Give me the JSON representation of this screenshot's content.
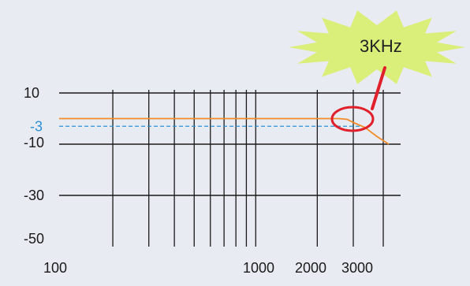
{
  "chart_data": {
    "type": "line",
    "title": "",
    "xlabel": "",
    "ylabel": "",
    "x_scale": "log",
    "xlim": [
      100,
      3600
    ],
    "ylim": [
      -50,
      10
    ],
    "x_tick_labels": [
      "100",
      "1000",
      "2000",
      "3000"
    ],
    "y_tick_labels": [
      "10",
      "-10",
      "-30",
      "-50"
    ],
    "reference_line": {
      "label": "-3",
      "y": -3,
      "color": "#2a92d6"
    },
    "series": [
      {
        "color": "#f08c2a",
        "x": [
          100,
          200,
          500,
          1000,
          2000,
          2550,
          2800,
          3000,
          3200,
          3400,
          3600
        ],
        "y": [
          0,
          0,
          0,
          0,
          0,
          0,
          -0.3,
          -1.5,
          -3.5,
          -7,
          -10
        ]
      }
    ],
    "highlight": {
      "label": "3KHz",
      "x": 3000,
      "color": "#e0202a"
    },
    "callout_color": "#d9ef7a"
  }
}
